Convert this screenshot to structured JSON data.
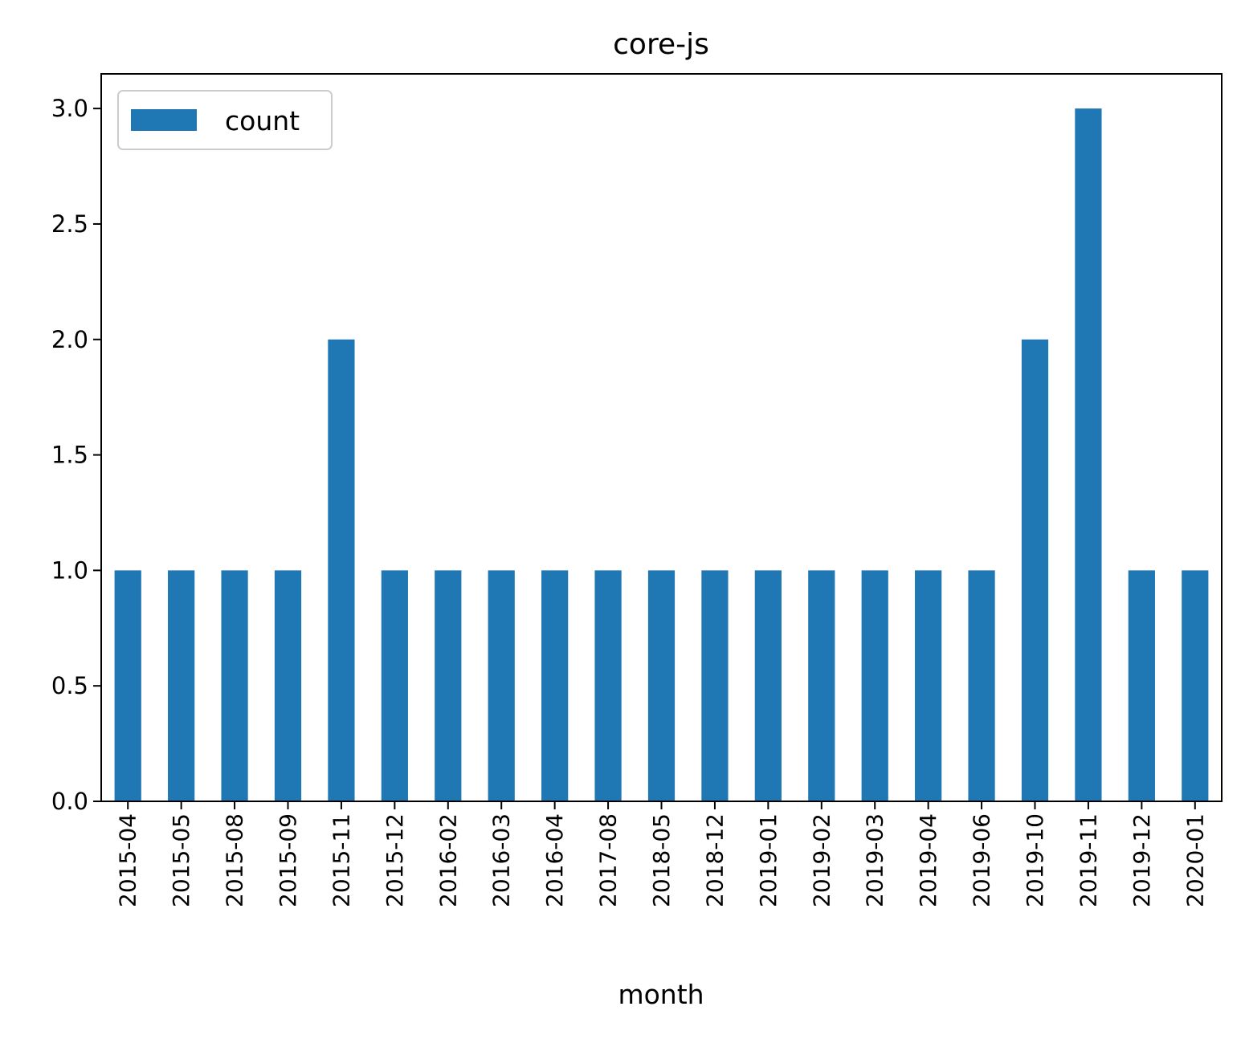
{
  "chart_data": {
    "type": "bar",
    "title": "core-js",
    "xlabel": "month",
    "ylabel": "",
    "categories": [
      "2015-04",
      "2015-05",
      "2015-08",
      "2015-09",
      "2015-11",
      "2015-12",
      "2016-02",
      "2016-03",
      "2016-04",
      "2017-08",
      "2018-05",
      "2018-12",
      "2019-01",
      "2019-02",
      "2019-03",
      "2019-04",
      "2019-06",
      "2019-10",
      "2019-11",
      "2019-12",
      "2020-01"
    ],
    "series": [
      {
        "name": "count",
        "values": [
          1,
          1,
          1,
          1,
          2,
          1,
          1,
          1,
          1,
          1,
          1,
          1,
          1,
          1,
          1,
          1,
          1,
          2,
          3,
          1,
          1
        ]
      }
    ],
    "ylim": [
      0,
      3.15
    ],
    "yticks": [
      0.0,
      0.5,
      1.0,
      1.5,
      2.0,
      2.5,
      3.0
    ],
    "ytick_labels": [
      "0.0",
      "0.5",
      "1.0",
      "1.5",
      "2.0",
      "2.5",
      "3.0"
    ],
    "grid": false,
    "legend_position": "top-left",
    "colors": {
      "bar": "#1f77b4",
      "axis": "#000000",
      "background": "#ffffff"
    }
  }
}
